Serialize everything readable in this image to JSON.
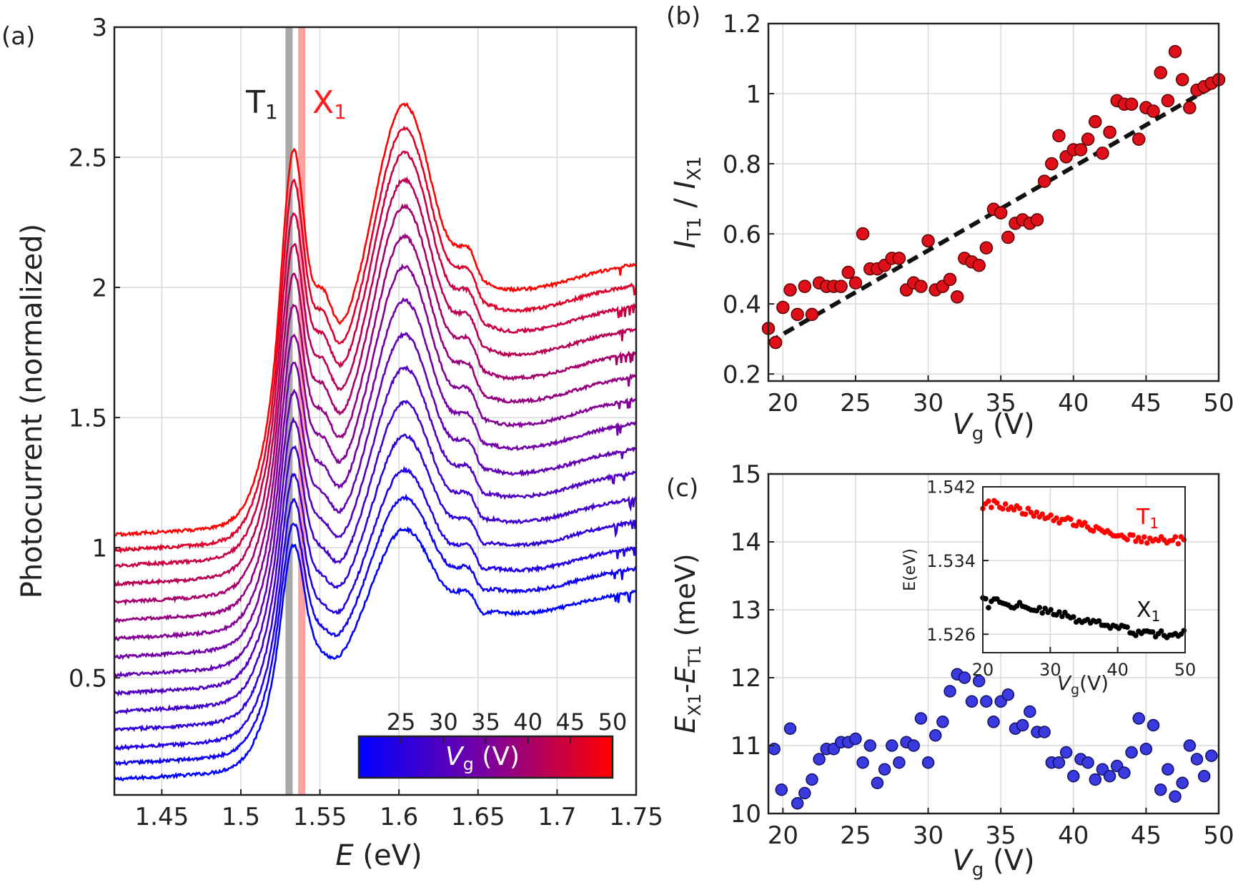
{
  "panels": {
    "a": {
      "label": "(a)"
    },
    "b": {
      "label": "(b)"
    },
    "c": {
      "label": "(c)"
    }
  },
  "colors": {
    "low": "#0000ff",
    "mid": "#7a00a0",
    "high": "#ff0000",
    "T1_line": "#9a9a9a",
    "X1_line": "#ff9090",
    "b_points": "#e0101a",
    "c_points": "#3a3ae0"
  },
  "chart_data": [
    {
      "id": "a",
      "type": "line",
      "xlabel_italic": "E",
      "xlabel_unit": "(eV)",
      "ylabel": "Photocurrent (normalized)",
      "xlim": [
        1.42,
        1.75
      ],
      "ylim": [
        0.05,
        3.0
      ],
      "xticks": [
        "1.45",
        "1.5",
        "1.55",
        "1.6",
        "1.65",
        "1.7",
        "1.75"
      ],
      "xtick_values": [
        1.45,
        1.5,
        1.55,
        1.6,
        1.65,
        1.7,
        1.75
      ],
      "yticks": [
        "0.5",
        "1",
        "1.5",
        "2",
        "2.5",
        "3"
      ],
      "ytick_values": [
        0.5,
        1.0,
        1.5,
        2.0,
        2.5,
        3.0
      ],
      "grid": true,
      "markers": [
        {
          "name": "T",
          "sub": "1",
          "x": 1.5305,
          "color": "#9a9a9a"
        },
        {
          "name": "X",
          "sub": "1",
          "x": 1.5385,
          "color": "#ff9090"
        }
      ],
      "colorbar": {
        "ticks": [
          "25",
          "30",
          "35",
          "40",
          "45",
          "50"
        ],
        "tick_values": [
          25,
          30,
          35,
          40,
          45,
          50
        ],
        "vmin": 20,
        "vmax": 50,
        "label_italic": "V",
        "label_sub": "g",
        "label_unit": "(V)",
        "placement": "bottom-right"
      },
      "series": [
        {
          "vg": 20,
          "offset": 0.05,
          "start": 0.06,
          "peak1": 0.75,
          "sat": 0.62,
          "bump2": 0.05,
          "end": 0.78
        },
        {
          "vg": 22,
          "offset": 0.11,
          "start": 0.06,
          "peak1": 0.76,
          "sat": 0.64,
          "bump2": 0.08,
          "end": 0.81
        },
        {
          "vg": 24,
          "offset": 0.17,
          "start": 0.06,
          "peak1": 0.78,
          "sat": 0.66,
          "bump2": 0.1,
          "end": 0.83
        },
        {
          "vg": 26,
          "offset": 0.24,
          "start": 0.06,
          "peak1": 0.8,
          "sat": 0.68,
          "bump2": 0.13,
          "end": 0.86
        },
        {
          "vg": 28,
          "offset": 0.31,
          "start": 0.06,
          "peak1": 0.83,
          "sat": 0.7,
          "bump2": 0.16,
          "end": 0.88
        },
        {
          "vg": 30,
          "offset": 0.38,
          "start": 0.06,
          "peak1": 0.86,
          "sat": 0.72,
          "bump2": 0.19,
          "end": 0.91
        },
        {
          "vg": 32,
          "offset": 0.45,
          "start": 0.06,
          "peak1": 0.9,
          "sat": 0.74,
          "bump2": 0.22,
          "end": 0.93
        },
        {
          "vg": 34,
          "offset": 0.52,
          "start": 0.06,
          "peak1": 0.94,
          "sat": 0.76,
          "bump2": 0.25,
          "end": 0.96
        },
        {
          "vg": 36,
          "offset": 0.59,
          "start": 0.06,
          "peak1": 0.98,
          "sat": 0.78,
          "bump2": 0.28,
          "end": 0.98
        },
        {
          "vg": 38,
          "offset": 0.66,
          "start": 0.06,
          "peak1": 1.03,
          "sat": 0.8,
          "bump2": 0.3,
          "end": 1.0
        },
        {
          "vg": 40,
          "offset": 0.73,
          "start": 0.06,
          "peak1": 1.08,
          "sat": 0.82,
          "bump2": 0.32,
          "end": 1.02
        },
        {
          "vg": 42,
          "offset": 0.8,
          "start": 0.06,
          "peak1": 1.13,
          "sat": 0.84,
          "bump2": 0.33,
          "end": 1.04
        },
        {
          "vg": 44,
          "offset": 0.87,
          "start": 0.06,
          "peak1": 1.19,
          "sat": 0.86,
          "bump2": 0.34,
          "end": 1.06
        },
        {
          "vg": 46,
          "offset": 0.93,
          "start": 0.06,
          "peak1": 1.27,
          "sat": 0.88,
          "bump2": 0.35,
          "end": 1.08
        },
        {
          "vg": 50,
          "offset": 0.99,
          "start": 0.06,
          "peak1": 1.35,
          "sat": 0.9,
          "bump2": 0.36,
          "end": 1.1
        }
      ]
    },
    {
      "id": "b",
      "type": "scatter",
      "xlabel_italic": "V",
      "xlabel_sub": "g",
      "xlabel_unit": "(V)",
      "ylabel_i1": "I",
      "ylabel_s1": "T1",
      "ylabel_sep": " / ",
      "ylabel_i2": "I",
      "ylabel_s2": "X1",
      "xlim": [
        19,
        50
      ],
      "ylim": [
        0.18,
        1.2
      ],
      "xticks": [
        "20",
        "25",
        "30",
        "35",
        "40",
        "45",
        "50"
      ],
      "xtick_values": [
        20,
        25,
        30,
        35,
        40,
        45,
        50
      ],
      "yticks": [
        "0.2",
        "0.4",
        "0.6",
        "0.8",
        "1",
        "1.2"
      ],
      "ytick_values": [
        0.2,
        0.4,
        0.6,
        0.8,
        1.0,
        1.2
      ],
      "grid": true,
      "fit_line": {
        "x": [
          19,
          50
        ],
        "y": [
          0.29,
          1.03
        ]
      },
      "points": [
        [
          19.0,
          0.33
        ],
        [
          19.5,
          0.29
        ],
        [
          20.0,
          0.39
        ],
        [
          20.5,
          0.44
        ],
        [
          21.0,
          0.37
        ],
        [
          21.5,
          0.45
        ],
        [
          22.0,
          0.37
        ],
        [
          22.5,
          0.46
        ],
        [
          23.0,
          0.45
        ],
        [
          23.5,
          0.45
        ],
        [
          24.0,
          0.45
        ],
        [
          24.5,
          0.49
        ],
        [
          25.0,
          0.46
        ],
        [
          25.5,
          0.6
        ],
        [
          26.0,
          0.5
        ],
        [
          26.5,
          0.5
        ],
        [
          27.0,
          0.51
        ],
        [
          27.5,
          0.53
        ],
        [
          28.0,
          0.53
        ],
        [
          28.5,
          0.44
        ],
        [
          29.0,
          0.46
        ],
        [
          29.5,
          0.45
        ],
        [
          30.0,
          0.58
        ],
        [
          30.5,
          0.44
        ],
        [
          31.0,
          0.45
        ],
        [
          31.5,
          0.47
        ],
        [
          32.0,
          0.42
        ],
        [
          32.5,
          0.53
        ],
        [
          33.0,
          0.52
        ],
        [
          33.5,
          0.51
        ],
        [
          34.0,
          0.56
        ],
        [
          34.5,
          0.67
        ],
        [
          35.0,
          0.66
        ],
        [
          35.5,
          0.59
        ],
        [
          36.0,
          0.63
        ],
        [
          36.5,
          0.64
        ],
        [
          37.0,
          0.63
        ],
        [
          37.5,
          0.64
        ],
        [
          38.0,
          0.75
        ],
        [
          38.5,
          0.8
        ],
        [
          39.0,
          0.88
        ],
        [
          39.5,
          0.82
        ],
        [
          40.0,
          0.84
        ],
        [
          40.5,
          0.84
        ],
        [
          41.0,
          0.87
        ],
        [
          41.5,
          0.92
        ],
        [
          42.0,
          0.83
        ],
        [
          42.5,
          0.89
        ],
        [
          43.0,
          0.98
        ],
        [
          43.5,
          0.97
        ],
        [
          44.0,
          0.97
        ],
        [
          44.5,
          0.87
        ],
        [
          45.0,
          0.96
        ],
        [
          45.5,
          0.95
        ],
        [
          46.0,
          1.06
        ],
        [
          46.5,
          0.98
        ],
        [
          47.0,
          1.12
        ],
        [
          47.5,
          1.04
        ],
        [
          48.0,
          0.96
        ],
        [
          48.5,
          1.01
        ],
        [
          49.0,
          1.02
        ],
        [
          49.5,
          1.03
        ],
        [
          50.0,
          1.04
        ]
      ]
    },
    {
      "id": "c",
      "type": "scatter",
      "xlabel_italic": "V",
      "xlabel_sub": "g",
      "xlabel_unit": "(V)",
      "ylabel_i1": "E",
      "ylabel_s1": "X1",
      "ylabel_sep": "-",
      "ylabel_i2": "E",
      "ylabel_s2": "T1",
      "ylabel_unit": " (meV)",
      "xlim": [
        19,
        50
      ],
      "ylim": [
        10.0,
        15.0
      ],
      "xticks": [
        "20",
        "25",
        "30",
        "35",
        "40",
        "45",
        "50"
      ],
      "xtick_values": [
        20,
        25,
        30,
        35,
        40,
        45,
        50
      ],
      "yticks": [
        "10",
        "11",
        "12",
        "13",
        "14",
        "15"
      ],
      "ytick_values": [
        10,
        11,
        12,
        13,
        14,
        15
      ],
      "grid": true,
      "points": [
        [
          19.4,
          10.95
        ],
        [
          19.9,
          10.35
        ],
        [
          20.5,
          11.25
        ],
        [
          21.0,
          10.15
        ],
        [
          21.5,
          10.3
        ],
        [
          22.0,
          10.5
        ],
        [
          22.5,
          10.8
        ],
        [
          23.0,
          10.95
        ],
        [
          23.5,
          10.95
        ],
        [
          24.0,
          11.05
        ],
        [
          24.5,
          11.05
        ],
        [
          25.0,
          11.1
        ],
        [
          25.5,
          10.75
        ],
        [
          26.0,
          11.0
        ],
        [
          26.5,
          10.45
        ],
        [
          27.0,
          10.65
        ],
        [
          27.5,
          11.0
        ],
        [
          28.0,
          10.75
        ],
        [
          28.5,
          11.05
        ],
        [
          29.0,
          11.0
        ],
        [
          29.5,
          11.4
        ],
        [
          30.0,
          10.75
        ],
        [
          30.5,
          11.15
        ],
        [
          31.0,
          11.35
        ],
        [
          31.5,
          11.8
        ],
        [
          32.0,
          12.05
        ],
        [
          32.5,
          12.0
        ],
        [
          33.0,
          11.65
        ],
        [
          33.5,
          11.95
        ],
        [
          34.0,
          11.65
        ],
        [
          34.5,
          11.35
        ],
        [
          35.0,
          11.65
        ],
        [
          35.5,
          11.75
        ],
        [
          36.0,
          11.25
        ],
        [
          36.5,
          11.3
        ],
        [
          37.0,
          11.5
        ],
        [
          37.5,
          11.2
        ],
        [
          38.0,
          11.2
        ],
        [
          38.5,
          10.75
        ],
        [
          39.0,
          10.75
        ],
        [
          39.5,
          10.9
        ],
        [
          40.0,
          10.55
        ],
        [
          40.5,
          10.8
        ],
        [
          41.0,
          10.75
        ],
        [
          41.5,
          10.5
        ],
        [
          42.0,
          10.65
        ],
        [
          42.5,
          10.55
        ],
        [
          43.0,
          10.7
        ],
        [
          43.5,
          10.6
        ],
        [
          44.0,
          10.9
        ],
        [
          44.5,
          11.4
        ],
        [
          45.0,
          10.95
        ],
        [
          45.5,
          11.3
        ],
        [
          46.0,
          10.35
        ],
        [
          46.5,
          10.65
        ],
        [
          47.0,
          10.25
        ],
        [
          47.5,
          10.45
        ],
        [
          48.0,
          11.0
        ],
        [
          48.5,
          10.8
        ],
        [
          49.0,
          10.55
        ],
        [
          49.5,
          10.85
        ]
      ],
      "inset": {
        "ylabel": "E(eV)",
        "xlabel_italic": "V",
        "xlabel_sub": "g",
        "xlabel_unit": "(V)",
        "xlim": [
          20,
          50
        ],
        "ylim": [
          1.524,
          1.542
        ],
        "xticks": [
          "20",
          "30",
          "40",
          "50"
        ],
        "xtick_values": [
          20,
          30,
          40,
          50
        ],
        "yticks": [
          "1.526",
          "1.534",
          "1.542"
        ],
        "ytick_values": [
          1.526,
          1.534,
          1.542
        ],
        "series": [
          {
            "label": "T",
            "sub": "1",
            "color": "#ff0000",
            "start": 1.5405,
            "end": 1.5362,
            "noise": 0.0004
          },
          {
            "label": "X",
            "sub": "1",
            "color": "#000000",
            "start": 1.53,
            "end": 1.526,
            "noise": 0.0004
          }
        ]
      }
    }
  ]
}
